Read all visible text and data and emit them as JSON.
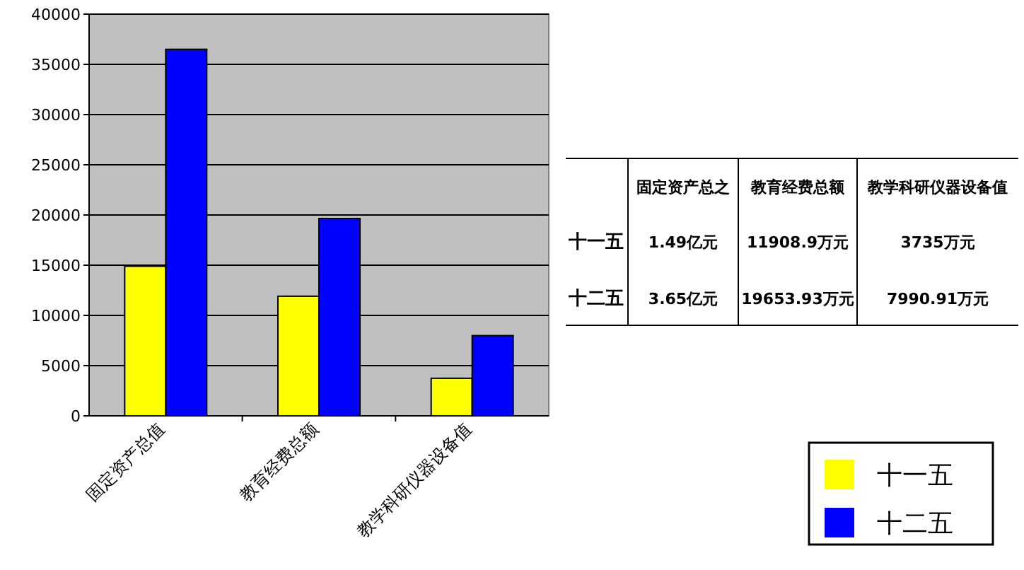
{
  "chart_data": [
    {
      "type": "bar",
      "categories": [
        "固定资产总值",
        "教育经费总额",
        "教学科研仪器设备值"
      ],
      "series": [
        {
          "name": "十一五",
          "color": "#ffff00",
          "values": [
            14900,
            11910,
            3740
          ]
        },
        {
          "name": "十二五",
          "color": "#0000ff",
          "values": [
            36500,
            19650,
            7990
          ]
        }
      ],
      "ylim": [
        0,
        40000
      ],
      "yticks": [
        0,
        5000,
        10000,
        15000,
        20000,
        25000,
        30000,
        35000,
        40000
      ],
      "grid": "y",
      "legend": "bottom right"
    },
    {
      "type": "other",
      "annotations": [
        "固定资产总之",
        "教育经费总额",
        "教学科研仪器设备值",
        "十一五",
        "1.49亿元",
        "11908.9万元",
        "3735万元",
        "十二五",
        "3.65亿元",
        "19653.93万元",
        "7990.91万元"
      ]
    }
  ]
}
